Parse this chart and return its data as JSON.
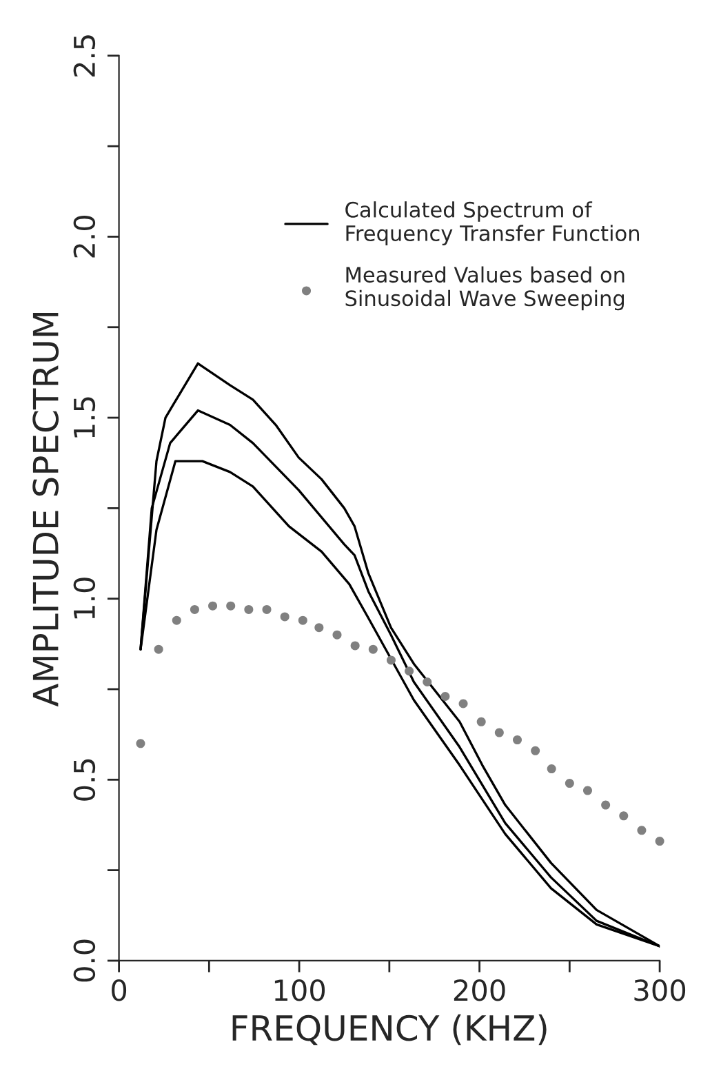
{
  "chart_data": {
    "type": "line",
    "xlabel": "FREQUENCY (KHZ)",
    "ylabel": "AMPLITUDE SPECTRUM",
    "xlim": [
      0,
      300
    ],
    "ylim": [
      0,
      2.5
    ],
    "xticks": [
      0,
      {
        "value": 50,
        "label": null
      },
      100,
      {
        "value": 150,
        "label": null
      },
      200,
      {
        "value": 250,
        "label": null
      },
      300
    ],
    "yticks": [
      {
        "value": 0,
        "label": "0.0"
      },
      {
        "value": 0.25,
        "label": null
      },
      0.5,
      {
        "value": 0.75,
        "label": null
      },
      {
        "value": 1,
        "label": "1.0"
      },
      {
        "value": 1.25,
        "label": null
      },
      1.5,
      {
        "value": 1.75,
        "label": null
      },
      {
        "value": 2,
        "label": "2.0"
      },
      {
        "value": 2.25,
        "label": null
      },
      2.5
    ],
    "grid": false,
    "legend": "top right",
    "series": [
      {
        "name": "Calculated Spectrum of\nFrequency Transfer Function",
        "color": "#000000",
        "marker": "none",
        "x": [
          12,
          18.2,
          28.4,
          43.8,
          61.6,
          74.3,
          99.7,
          125,
          130.7,
          138.4,
          150.9,
          163.6,
          189,
          214.3,
          239.7,
          265,
          300
        ],
        "values": [
          0.86,
          1.25,
          1.43,
          1.52,
          1.48,
          1.43,
          1.3,
          1.15,
          1.12,
          1.02,
          0.9,
          0.77,
          0.59,
          0.38,
          0.23,
          0.11,
          0.04
        ]
      },
      {
        "color": "#000000",
        "marker": "none",
        "x": [
          12,
          20.8,
          25.8,
          43.8,
          61.6,
          74.3,
          87,
          99.7,
          112.4,
          125,
          130.7,
          138.4,
          150.9,
          163.6,
          189,
          201.6,
          214.3,
          239.7,
          265,
          300
        ],
        "values": [
          0.86,
          1.38,
          1.5,
          1.65,
          1.59,
          1.55,
          1.48,
          1.39,
          1.33,
          1.25,
          1.2,
          1.07,
          0.92,
          0.82,
          0.66,
          0.54,
          0.43,
          0.27,
          0.14,
          0.04
        ]
      },
      {
        "color": "#000000",
        "marker": "none",
        "x": [
          12,
          20.8,
          31.3,
          46.3,
          61.6,
          74.3,
          94.3,
          112.4,
          127.8,
          138,
          163.6,
          189,
          214.3,
          239.7,
          265,
          300
        ],
        "values": [
          0.86,
          1.19,
          1.38,
          1.38,
          1.35,
          1.31,
          1.2,
          1.13,
          1.04,
          0.95,
          0.72,
          0.54,
          0.35,
          0.2,
          0.1,
          0.04
        ]
      },
      {
        "name": "Measured Values based on\nSinusoidal Wave Sweeping",
        "type": "scatter",
        "color": "#808080",
        "marker": "circle",
        "x": [
          12,
          22,
          32,
          42,
          52,
          62,
          72,
          82,
          92,
          102,
          111,
          121,
          131,
          141,
          151,
          161,
          171,
          181,
          191,
          201,
          211,
          221,
          231,
          240,
          250,
          260,
          270,
          280,
          290,
          300
        ],
        "values": [
          0.6,
          0.86,
          0.94,
          0.97,
          0.98,
          0.98,
          0.97,
          0.97,
          0.95,
          0.94,
          0.92,
          0.9,
          0.87,
          0.86,
          0.83,
          0.8,
          0.77,
          0.73,
          0.71,
          0.66,
          0.63,
          0.61,
          0.58,
          0.53,
          0.49,
          0.47,
          0.43,
          0.4,
          0.36,
          0.33
        ]
      }
    ]
  }
}
